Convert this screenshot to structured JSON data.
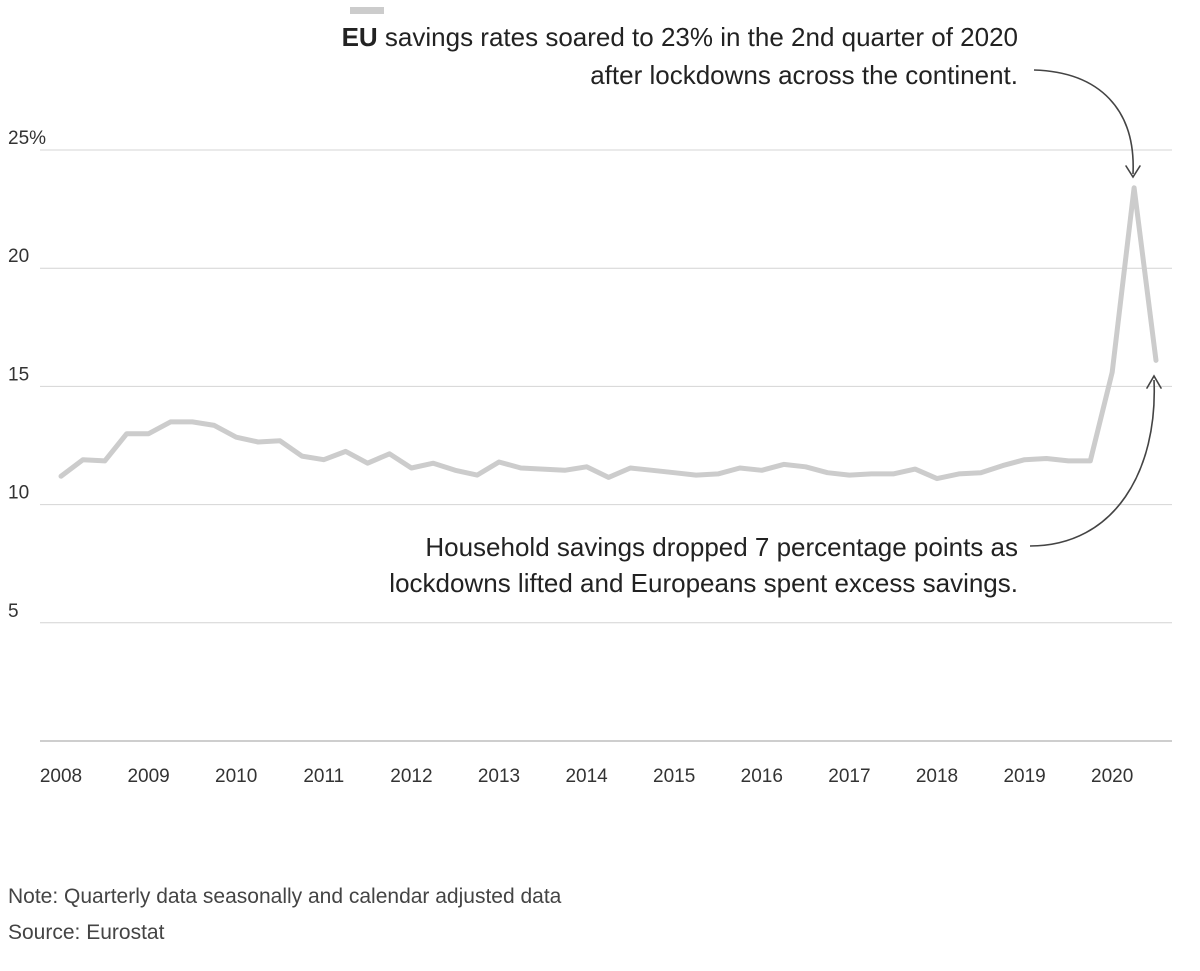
{
  "chart_data": {
    "type": "line",
    "title": "",
    "xlabel": "",
    "ylabel": "",
    "ylim": [
      0,
      25
    ],
    "y_ticks": [
      {
        "value": 25,
        "label": "25%"
      },
      {
        "value": 20,
        "label": "20"
      },
      {
        "value": 15,
        "label": "15"
      },
      {
        "value": 10,
        "label": "10"
      },
      {
        "value": 5,
        "label": "5"
      }
    ],
    "x_ticks": [
      "2008",
      "2009",
      "2010",
      "2011",
      "2012",
      "2013",
      "2014",
      "2015",
      "2016",
      "2017",
      "2018",
      "2019",
      "2020"
    ],
    "x_start_year": 2008,
    "series": [
      {
        "name": "EU",
        "frequency": "quarterly",
        "values": [
          11.2,
          11.9,
          11.85,
          13.0,
          13.0,
          13.5,
          13.5,
          13.35,
          12.85,
          12.65,
          12.7,
          12.05,
          11.9,
          12.25,
          11.75,
          12.15,
          11.55,
          11.75,
          11.45,
          11.25,
          11.8,
          11.55,
          11.5,
          11.45,
          11.6,
          11.15,
          11.55,
          11.45,
          11.35,
          11.25,
          11.3,
          11.55,
          11.45,
          11.7,
          11.6,
          11.35,
          11.25,
          11.3,
          11.3,
          11.5,
          11.1,
          11.3,
          11.35,
          11.65,
          11.9,
          11.95,
          11.85,
          11.85,
          15.6,
          23.4,
          16.1
        ]
      }
    ],
    "annotations": {
      "legend_name": "EU",
      "top_line1": " savings rates soared to 23% in the 2nd quarter of 2020",
      "top_line2": "after lockdowns across the continent.",
      "bottom_line1": "Household savings dropped 7 percentage points as",
      "bottom_line2": "lockdowns lifted and Europeans spent excess savings."
    }
  },
  "footer": {
    "note": "Note: Quarterly data seasonally and calendar adjusted data",
    "source": "Source: Eurostat"
  }
}
